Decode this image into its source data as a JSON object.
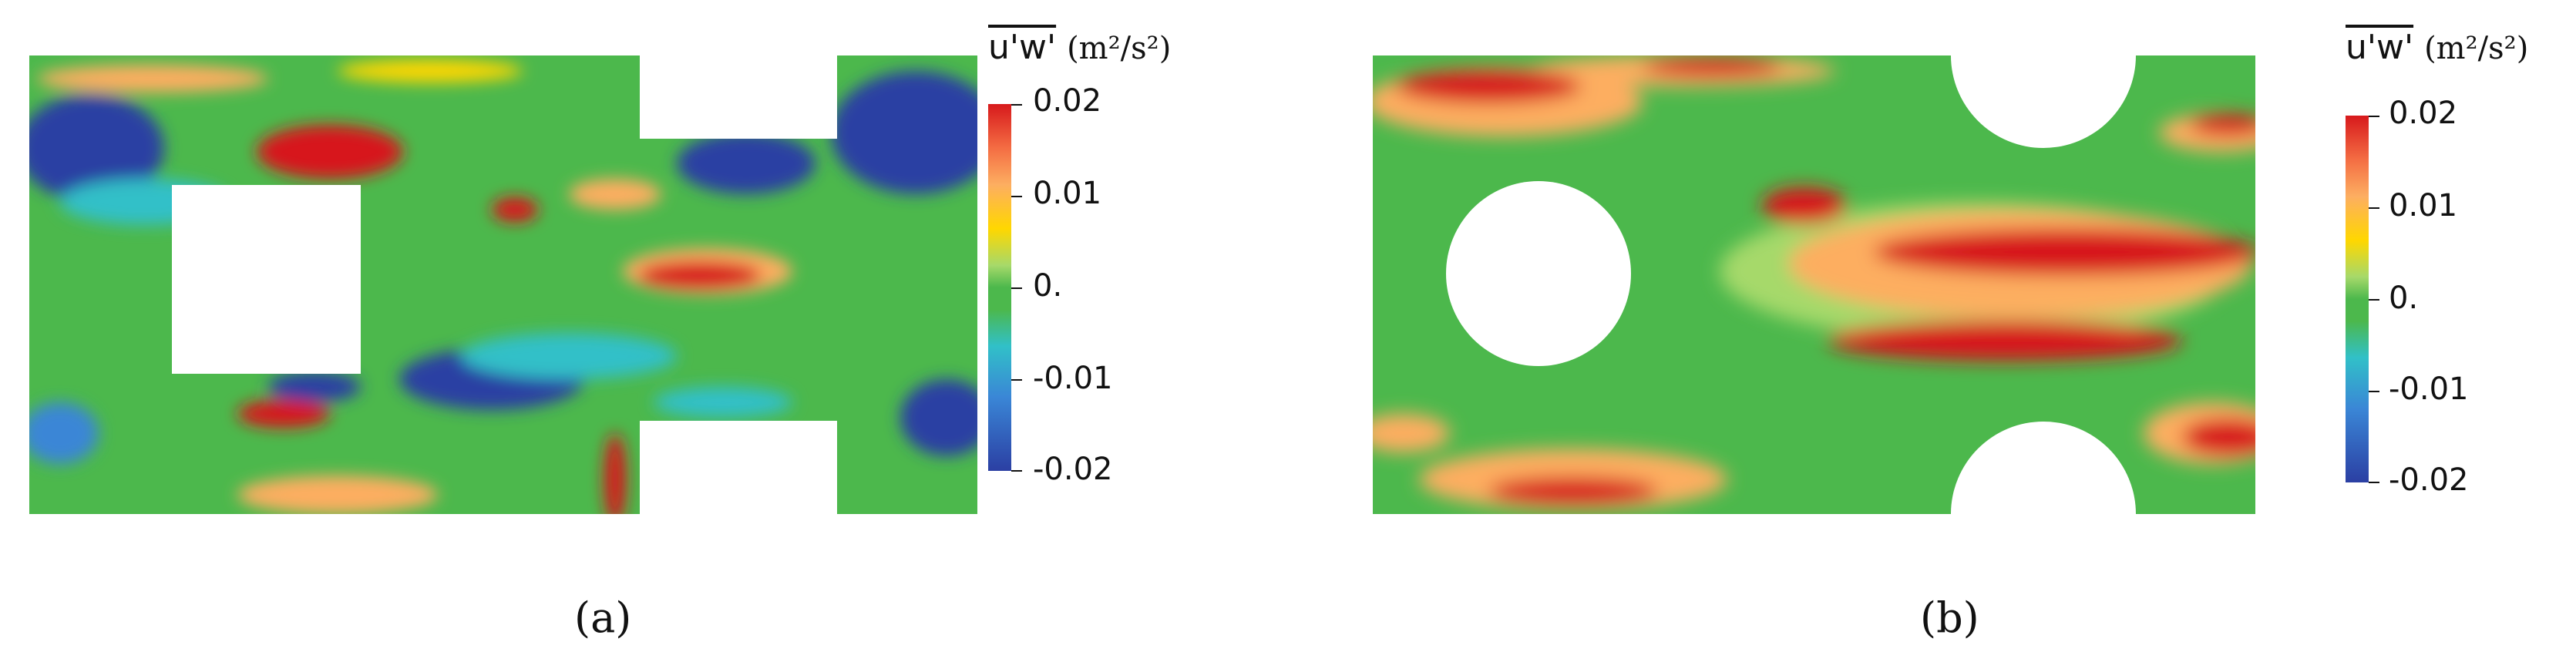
{
  "panels": [
    {
      "caption": "(a)",
      "colorbar": {
        "quantity": "u'w'",
        "unit": "(m²/s²)",
        "ticks": [
          "0.02",
          "0.01",
          "0.",
          "-0.01",
          "-0.02"
        ]
      }
    },
    {
      "caption": "(b)",
      "colorbar": {
        "quantity": "u'w'",
        "unit": "(m²/s²)",
        "ticks": [
          "0.02",
          "0.01",
          "0.",
          "-0.01",
          "-0.02"
        ]
      }
    }
  ],
  "colors": {
    "high": "#d7191c",
    "zero": "#4cb84c",
    "low": "#2b3fa3"
  }
}
